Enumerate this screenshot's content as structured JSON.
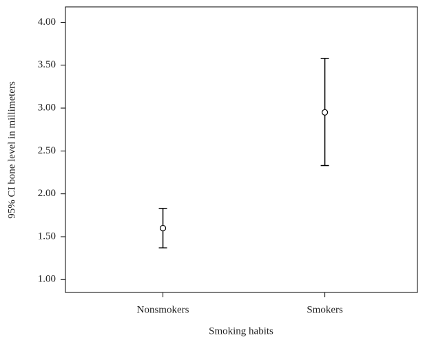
{
  "chart_data": {
    "type": "errorbar",
    "x_label": "Smoking habits",
    "y_label": "95% CI bone level in millimeters",
    "categories": [
      "Nonsmokers",
      "Smokers"
    ],
    "values": [
      1.6,
      2.95
    ],
    "lower": [
      1.37,
      2.33
    ],
    "upper": [
      1.83,
      3.58
    ],
    "color": "#000000",
    "ylim": [
      0.85,
      4.18
    ],
    "yticks": [
      {
        "value": 1,
        "label": "1.00"
      },
      {
        "value": 1.5,
        "label": "1.50"
      },
      {
        "value": 2,
        "label": "2.00"
      },
      {
        "value": 2.5,
        "label": "2.50"
      },
      {
        "value": 3,
        "label": "3.00"
      },
      {
        "value": 3.5,
        "label": "3.50"
      },
      {
        "value": 4,
        "label": "4.00"
      }
    ],
    "grid": false
  }
}
